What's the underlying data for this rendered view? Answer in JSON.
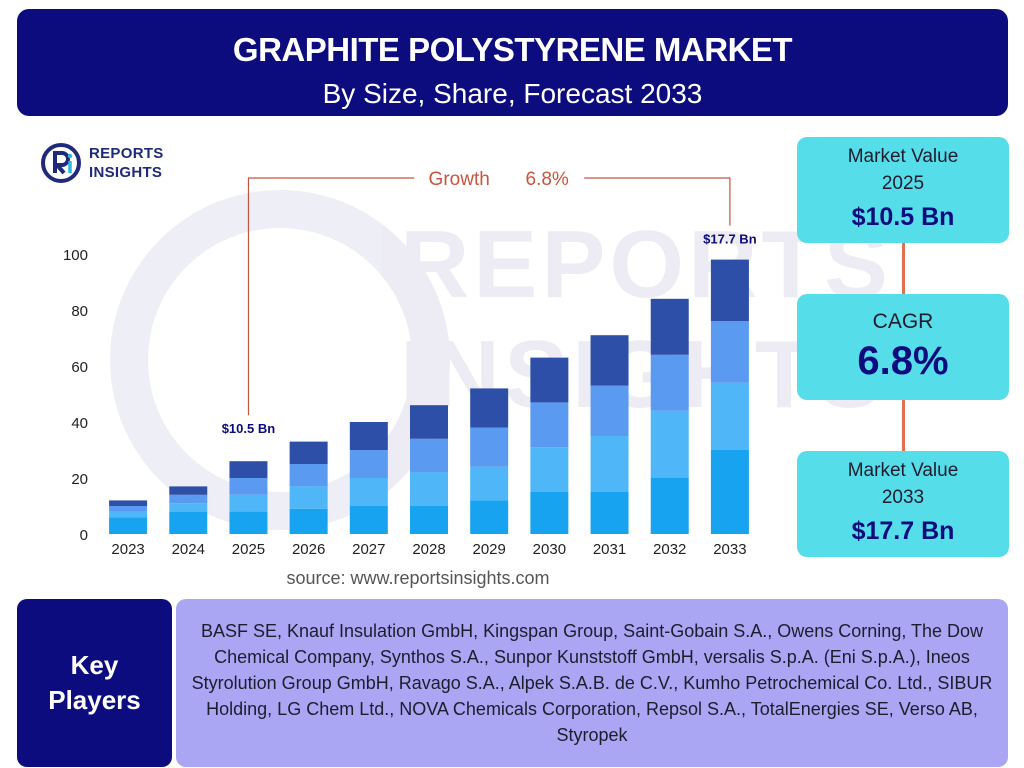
{
  "header": {
    "title": "GRAPHITE POLYSTYRENE MARKET",
    "subtitle": "By Size, Share, Forecast 2033"
  },
  "logo": {
    "line1": "REPORTS",
    "line2": "INSIGHTS"
  },
  "watermark": {
    "line1": "REPORTS",
    "line2": "INSIGHTS"
  },
  "chart_data": {
    "type": "bar",
    "stacked": true,
    "categories": [
      "2023",
      "2024",
      "2025",
      "2026",
      "2027",
      "2028",
      "2029",
      "2030",
      "2031",
      "2032",
      "2033"
    ],
    "series": [
      {
        "color": "#17a3f0",
        "values": [
          6,
          8,
          8,
          9,
          10,
          10,
          12,
          15,
          15,
          20,
          30
        ]
      },
      {
        "color": "#4fb7f7",
        "values": [
          2,
          3,
          6,
          8,
          10,
          12,
          12,
          16,
          20,
          24,
          24
        ]
      },
      {
        "color": "#5a9af0",
        "values": [
          2,
          3,
          6,
          8,
          10,
          12,
          14,
          16,
          18,
          20,
          22
        ]
      },
      {
        "color": "#2e4fa8",
        "values": [
          2,
          3,
          6,
          8,
          10,
          12,
          14,
          16,
          18,
          20,
          22
        ]
      }
    ],
    "ylim": [
      0,
      100
    ],
    "yticks": [
      0,
      20,
      40,
      60,
      80,
      100
    ],
    "grid": false,
    "annotations": {
      "start_label": "$10.5 Bn",
      "start_category": "2025",
      "end_label": "$17.7 Bn",
      "end_category": "2033",
      "growth_label": "Growth",
      "growth_value": "6.8%",
      "growth_color": "#c8553d"
    }
  },
  "source": "source: www.reportsinsights.com",
  "cards": {
    "market_2025": {
      "label_line1": "Market Value",
      "label_line2": "2025",
      "value": "$10.5 Bn"
    },
    "cagr": {
      "label": "CAGR",
      "value": "6.8%"
    },
    "market_2033": {
      "label_line1": "Market Value",
      "label_line2": "2033",
      "value": "$17.7 Bn"
    }
  },
  "key_players": {
    "label": "Key Players",
    "text": "BASF SE, Knauf Insulation GmbH, Kingspan Group, Saint-Gobain S.A., Owens Corning, The Dow Chemical Company, Synthos S.A., Sunpor Kunststoff GmbH, versalis S.p.A. (Eni S.p.A.), Ineos Styrolution Group GmbH, Ravago S.A., Alpek S.A.B. de C.V., Kumho Petrochemical Co. Ltd., SIBUR Holding, LG Chem Ltd., NOVA Chemicals Corporation, Repsol S.A., TotalEnergies SE, Verso AB, Styropek"
  },
  "colors": {
    "header_bg": "#0d0c7e",
    "card_bg": "#56ddea",
    "players_bg": "#aaa6f3",
    "connector": "#e07050"
  }
}
